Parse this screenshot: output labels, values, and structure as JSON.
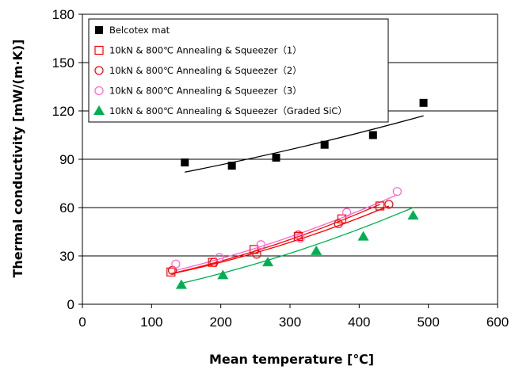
{
  "chart_data": {
    "type": "scatter",
    "xlabel": "Mean temperature [℃]",
    "ylabel": "Thermal conductivity [mW/(m·K)]",
    "xlim": [
      0,
      600
    ],
    "ylim": [
      0,
      180
    ],
    "xticks": [
      "0",
      "100",
      "200",
      "300",
      "400",
      "500",
      "600"
    ],
    "yticks": [
      "0",
      "30",
      "60",
      "90",
      "120",
      "150",
      "180"
    ],
    "grid": "horizontal",
    "legend_position": "top-left",
    "series": [
      {
        "name": "Belcotex mat",
        "marker": "square-filled",
        "color": "#000000",
        "x": [
          148,
          216,
          280,
          350,
          420,
          493
        ],
        "y": [
          88,
          86,
          91,
          99,
          105,
          125
        ],
        "trend": {
          "x": [
            148,
            493
          ],
          "y": [
            82,
            117
          ]
        }
      },
      {
        "name": "10kN & 800℃ Annealing & Squeezer（1）",
        "marker": "square-open",
        "color": "#ff0000",
        "x": [
          128,
          188,
          248,
          312,
          375,
          430
        ],
        "y": [
          20,
          26,
          34,
          42,
          53,
          61
        ],
        "trend": {
          "x": [
            128,
            430
          ],
          "y": [
            19,
            62
          ]
        }
      },
      {
        "name": "10kN & 800℃ Annealing & Squeezer（2）",
        "marker": "circle-open",
        "color": "#ff0000",
        "x": [
          130,
          190,
          252,
          312,
          370,
          443
        ],
        "y": [
          21,
          26,
          31,
          43,
          50,
          62
        ],
        "trend": {
          "x": [
            130,
            443
          ],
          "y": [
            19,
            61
          ]
        }
      },
      {
        "name": "10kN & 800℃ Annealing & Squeezer（3）",
        "marker": "circle-open",
        "color": "#ff66cc",
        "x": [
          135,
          198,
          258,
          315,
          382,
          455
        ],
        "y": [
          25,
          29,
          37,
          41,
          57,
          70
        ],
        "trend": {
          "x": [
            135,
            455
          ],
          "y": [
            21,
            68
          ]
        }
      },
      {
        "name": "10kN & 800℃ Annealing & Squeezer（Graded SiC）",
        "marker": "triangle-filled",
        "color": "#00b050",
        "x": [
          143,
          203,
          268,
          338,
          406,
          478
        ],
        "y": [
          12,
          18,
          26,
          33,
          42,
          55
        ],
        "trend": {
          "x": [
            143,
            478
          ],
          "y": [
            13,
            60
          ]
        }
      }
    ]
  }
}
